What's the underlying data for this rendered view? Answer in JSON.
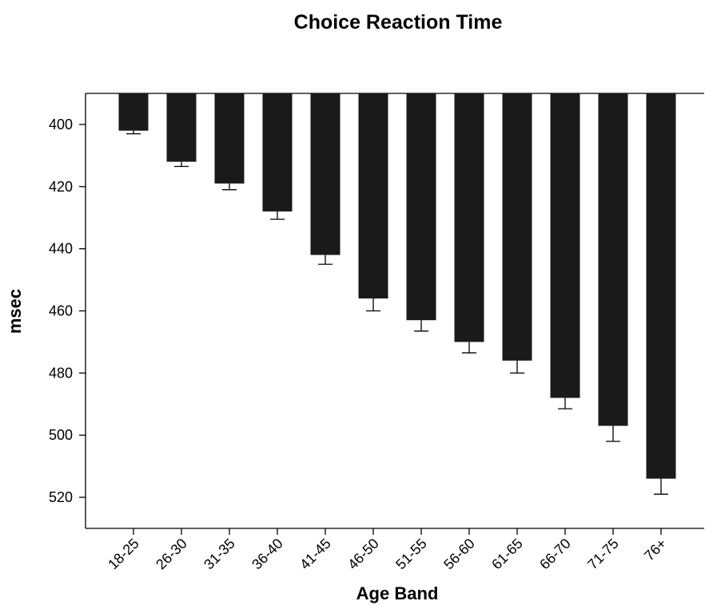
{
  "chart_data": {
    "type": "bar",
    "title": "Choice Reaction Time",
    "xlabel": "Age Band",
    "ylabel": "msec",
    "categories": [
      "18-25",
      "26-30",
      "31-35",
      "36-40",
      "41-45",
      "46-50",
      "51-55",
      "56-60",
      "61-65",
      "66-70",
      "71-75",
      "76+"
    ],
    "values": [
      402,
      412,
      419,
      428,
      442,
      456,
      463,
      470,
      476,
      488,
      497,
      514
    ],
    "error_upper": [
      403,
      413.5,
      421,
      430.5,
      445,
      460,
      466.5,
      473.5,
      480,
      491.5,
      502,
      519
    ],
    "ylim": [
      390,
      530
    ],
    "y_inverted": true,
    "yticks": [
      400,
      420,
      440,
      460,
      480,
      500,
      520
    ],
    "bar_color": "#1a1a1a",
    "grid": false
  }
}
